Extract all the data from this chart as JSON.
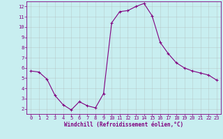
{
  "x": [
    0,
    1,
    2,
    3,
    4,
    5,
    6,
    7,
    8,
    9,
    10,
    11,
    12,
    13,
    14,
    15,
    16,
    17,
    18,
    19,
    20,
    21,
    22,
    23
  ],
  "y": [
    5.7,
    5.6,
    4.9,
    3.3,
    2.4,
    1.9,
    2.7,
    2.3,
    2.1,
    3.5,
    10.4,
    11.5,
    11.6,
    12.0,
    12.3,
    11.1,
    8.5,
    7.4,
    6.5,
    6.0,
    5.7,
    5.5,
    5.3,
    4.8
  ],
  "line_color": "#800080",
  "marker": "+",
  "marker_color": "#800080",
  "bg_color": "#c8eef0",
  "grid_color": "#aaaaaa",
  "xlabel": "Windchill (Refroidissement éolien,°C)",
  "xlabel_color": "#800080",
  "tick_color": "#800080",
  "ylim": [
    1.5,
    12.5
  ],
  "xlim": [
    -0.5,
    23.5
  ],
  "yticks": [
    2,
    3,
    4,
    5,
    6,
    7,
    8,
    9,
    10,
    11,
    12
  ],
  "xticks": [
    0,
    1,
    2,
    3,
    4,
    5,
    6,
    7,
    8,
    9,
    10,
    11,
    12,
    13,
    14,
    15,
    16,
    17,
    18,
    19,
    20,
    21,
    22,
    23
  ]
}
